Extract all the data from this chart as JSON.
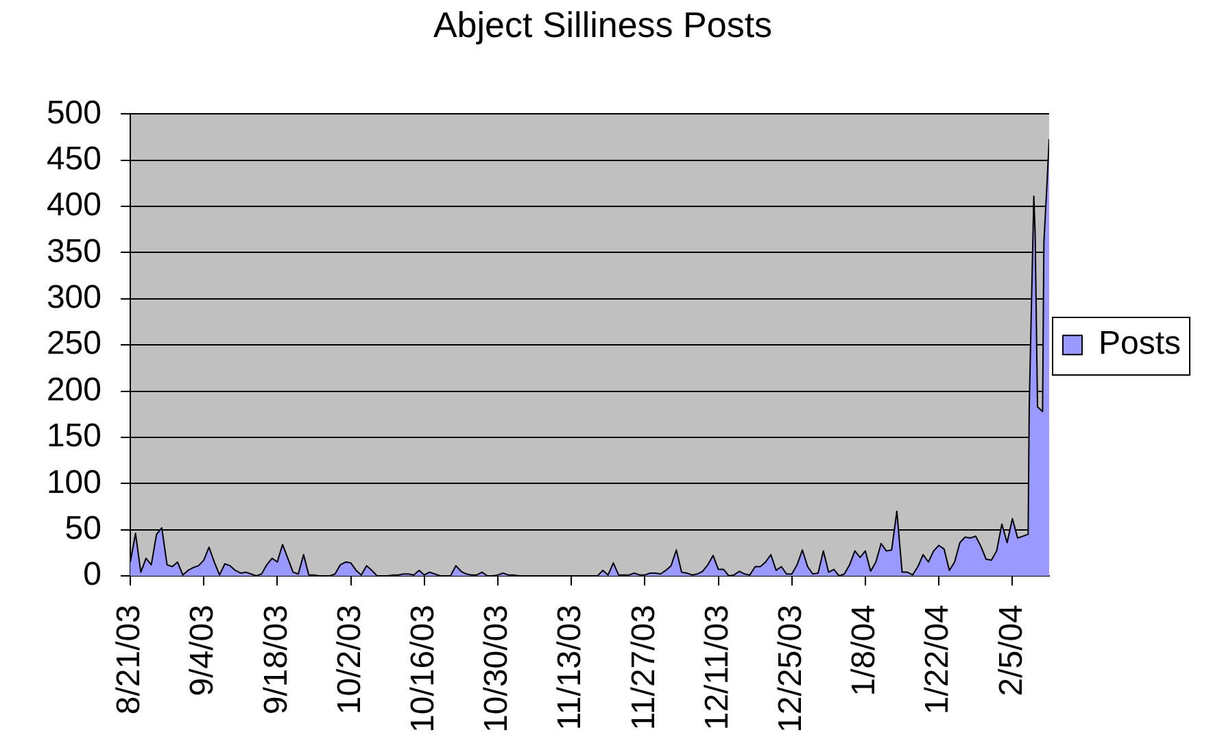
{
  "chart_data": {
    "type": "area",
    "title": "Abject Silliness Posts",
    "x": [
      "2003-08-21",
      "2003-08-22",
      "2003-08-23",
      "2003-08-24",
      "2003-08-25",
      "2003-08-26",
      "2003-08-27",
      "2003-08-28",
      "2003-08-29",
      "2003-08-30",
      "2003-08-31",
      "2003-09-01",
      "2003-09-02",
      "2003-09-03",
      "2003-09-04",
      "2003-09-05",
      "2003-09-06",
      "2003-09-07",
      "2003-09-08",
      "2003-09-09",
      "2003-09-10",
      "2003-09-11",
      "2003-09-12",
      "2003-09-13",
      "2003-09-14",
      "2003-09-15",
      "2003-09-16",
      "2003-09-17",
      "2003-09-18",
      "2003-09-19",
      "2003-09-20",
      "2003-09-21",
      "2003-09-22",
      "2003-09-23",
      "2003-09-24",
      "2003-09-25",
      "2003-09-26",
      "2003-09-27",
      "2003-09-28",
      "2003-09-29",
      "2003-09-30",
      "2003-10-01",
      "2003-10-02",
      "2003-10-03",
      "2003-10-04",
      "2003-10-05",
      "2003-10-06",
      "2003-10-07",
      "2003-10-08",
      "2003-10-09",
      "2003-10-10",
      "2003-10-11",
      "2003-10-12",
      "2003-10-13",
      "2003-10-14",
      "2003-10-15",
      "2003-10-16",
      "2003-10-17",
      "2003-10-18",
      "2003-10-19",
      "2003-10-20",
      "2003-10-21",
      "2003-10-22",
      "2003-10-23",
      "2003-10-24",
      "2003-10-25",
      "2003-10-26",
      "2003-10-27",
      "2003-10-28",
      "2003-10-29",
      "2003-10-30",
      "2003-10-31",
      "2003-11-01",
      "2003-11-02",
      "2003-11-03",
      "2003-11-04",
      "2003-11-05",
      "2003-11-06",
      "2003-11-07",
      "2003-11-08",
      "2003-11-09",
      "2003-11-10",
      "2003-11-11",
      "2003-11-12",
      "2003-11-13",
      "2003-11-14",
      "2003-11-15",
      "2003-11-16",
      "2003-11-17",
      "2003-11-18",
      "2003-11-19",
      "2003-11-20",
      "2003-11-21",
      "2003-11-22",
      "2003-11-23",
      "2003-11-24",
      "2003-11-25",
      "2003-11-26",
      "2003-11-27",
      "2003-11-28",
      "2003-11-29",
      "2003-11-30",
      "2003-12-01",
      "2003-12-02",
      "2003-12-03",
      "2003-12-04",
      "2003-12-05",
      "2003-12-06",
      "2003-12-07",
      "2003-12-08",
      "2003-12-09",
      "2003-12-10",
      "2003-12-11",
      "2003-12-12",
      "2003-12-13",
      "2003-12-14",
      "2003-12-15",
      "2003-12-16",
      "2003-12-17",
      "2003-12-18",
      "2003-12-19",
      "2003-12-20",
      "2003-12-21",
      "2003-12-22",
      "2003-12-23",
      "2003-12-24",
      "2003-12-25",
      "2003-12-26",
      "2003-12-27",
      "2003-12-28",
      "2003-12-29",
      "2003-12-30",
      "2003-12-31",
      "2004-01-01",
      "2004-01-02",
      "2004-01-03",
      "2004-01-04",
      "2004-01-05",
      "2004-01-06",
      "2004-01-07",
      "2004-01-08",
      "2004-01-09",
      "2004-01-10",
      "2004-01-11",
      "2004-01-12",
      "2004-01-13",
      "2004-01-14",
      "2004-01-15",
      "2004-01-16",
      "2004-01-17",
      "2004-01-18",
      "2004-01-19",
      "2004-01-20",
      "2004-01-21",
      "2004-01-22",
      "2004-01-23",
      "2004-01-24",
      "2004-01-25",
      "2004-01-26",
      "2004-01-27",
      "2004-01-28",
      "2004-01-29",
      "2004-01-30",
      "2004-01-31",
      "2004-02-01",
      "2004-02-02",
      "2004-02-03",
      "2004-02-04",
      "2004-02-05",
      "2004-02-06",
      "2004-02-07",
      "2004-02-08",
      "2004-02-08T05:00",
      "2004-02-09T02:00",
      "2004-02-09T08:00",
      "2004-02-09T19:00",
      "2004-02-10T18:00",
      "2004-02-11",
      "2004-02-11T16:00",
      "2004-02-12"
    ],
    "series": [
      {
        "name": "Posts",
        "color": "#9999ff",
        "values": [
          15,
          46,
          4,
          19,
          12,
          45,
          52,
          12,
          10,
          15,
          1,
          6,
          9,
          11,
          17,
          31,
          15,
          1,
          13,
          11,
          6,
          3,
          4,
          2,
          0,
          2,
          12,
          19,
          15,
          34,
          19,
          4,
          2,
          23,
          1,
          1,
          0,
          0,
          0,
          2,
          12,
          15,
          14,
          6,
          1,
          11,
          6,
          0,
          0,
          0,
          1,
          1,
          2,
          2,
          1,
          6,
          1,
          4,
          2,
          0,
          0,
          0,
          11,
          5,
          2,
          1,
          1,
          4,
          0,
          0,
          1,
          3,
          1,
          1,
          0,
          0,
          0,
          0,
          0,
          0,
          0,
          0,
          0,
          0,
          0,
          0,
          0,
          0,
          0,
          0,
          6,
          1,
          14,
          1,
          1,
          1,
          3,
          1,
          1,
          3,
          3,
          2,
          6,
          11,
          28,
          4,
          3,
          1,
          2,
          5,
          12,
          22,
          7,
          7,
          0,
          1,
          5,
          2,
          1,
          10,
          10,
          15,
          23,
          6,
          10,
          2,
          2,
          12,
          28,
          10,
          2,
          3,
          27,
          4,
          7,
          0,
          2,
          12,
          27,
          20,
          27,
          5,
          15,
          35,
          27,
          28,
          70,
          4,
          4,
          1,
          10,
          23,
          15,
          27,
          33,
          29,
          6,
          15,
          36,
          42,
          41,
          43,
          32,
          18,
          17,
          27,
          56,
          36,
          62,
          41,
          43,
          45,
          183,
          411,
          371,
          183,
          178,
          361,
          433,
          473
        ]
      }
    ],
    "xlim": [
      "2003-08-21",
      "2004-02-12"
    ],
    "xticks": [
      {
        "value": "2003-08-21",
        "label": "8/21/03"
      },
      {
        "value": "2003-09-04",
        "label": "9/4/03"
      },
      {
        "value": "2003-09-18",
        "label": "9/18/03"
      },
      {
        "value": "2003-10-02",
        "label": "10/2/03"
      },
      {
        "value": "2003-10-16",
        "label": "10/16/03"
      },
      {
        "value": "2003-10-30",
        "label": "10/30/03"
      },
      {
        "value": "2003-11-13",
        "label": "11/13/03"
      },
      {
        "value": "2003-11-27",
        "label": "11/27/03"
      },
      {
        "value": "2003-12-11",
        "label": "12/11/03"
      },
      {
        "value": "2003-12-25",
        "label": "12/25/03"
      },
      {
        "value": "2004-01-08",
        "label": "1/8/04"
      },
      {
        "value": "2004-01-22",
        "label": "1/22/04"
      },
      {
        "value": "2004-02-05",
        "label": "2/5/04"
      }
    ],
    "ylim": [
      0,
      500
    ],
    "yticks": [
      0,
      50,
      100,
      150,
      200,
      250,
      300,
      350,
      400,
      450,
      500
    ],
    "grid": "y",
    "legend": "right"
  }
}
